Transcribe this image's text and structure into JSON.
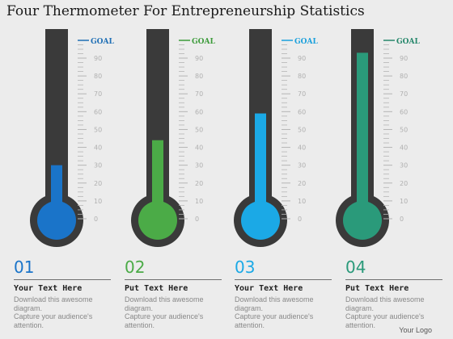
{
  "title": "Four Thermometer For Entrepreneurship Statistics",
  "goal_label": "GOAL",
  "scale_labels": [
    "90",
    "80",
    "70",
    "60",
    "50",
    "40",
    "30",
    "20",
    "10",
    "0"
  ],
  "thermometers": [
    {
      "number": "01",
      "level": 30,
      "color": "#1a74c9",
      "goal_color": "#1f6fb5",
      "heading": "Your Text Here",
      "desc_lines": [
        "Download this awesome",
        "diagram.",
        "Capture your audience's",
        "attention."
      ]
    },
    {
      "number": "02",
      "level": 44,
      "color": "#4bab47",
      "goal_color": "#3c9b3a",
      "heading": "Put Text Here",
      "desc_lines": [
        "Download this awesome",
        "diagram.",
        "Capture your audience's",
        "attention."
      ]
    },
    {
      "number": "03",
      "level": 59,
      "color": "#1ba9e6",
      "goal_color": "#1aa0dc",
      "heading": "Your Text Here",
      "desc_lines": [
        "Download this awesome",
        "diagram.",
        "Capture your audience's",
        "attention."
      ]
    },
    {
      "number": "04",
      "level": 93,
      "color": "#2a9a7a",
      "goal_color": "#26876b",
      "heading": "Put Text Here",
      "desc_lines": [
        "Download this awesome",
        "diagram.",
        "Capture your audience's",
        "attention."
      ]
    }
  ],
  "logo": "Your Logo",
  "colors": {
    "tube": "#3a3a3a",
    "tick": "#b5b5b5",
    "scale_text": "#b0b0b0",
    "background": "#ececec"
  }
}
